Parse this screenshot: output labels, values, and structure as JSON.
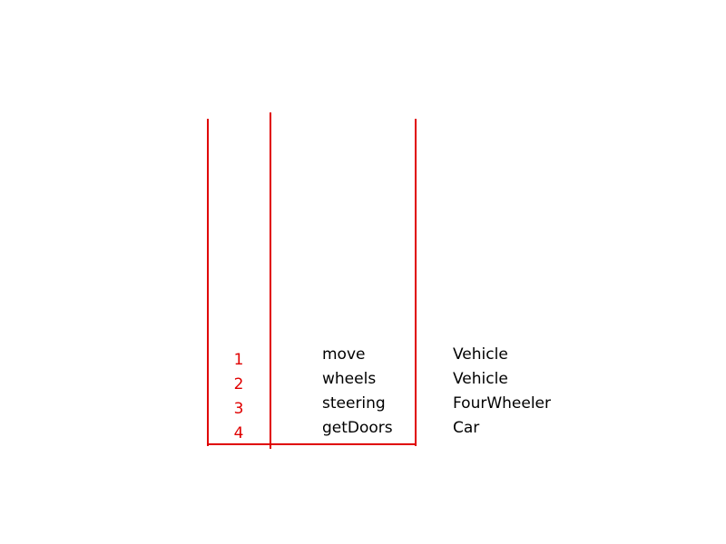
{
  "colors": {
    "accent": "#e00000",
    "text": "#000000",
    "background": "#ffffff"
  },
  "rows": [
    {
      "index": "1",
      "method": "move",
      "class": "Vehicle"
    },
    {
      "index": "2",
      "method": "wheels",
      "class": "Vehicle"
    },
    {
      "index": "3",
      "method": "steering",
      "class": "FourWheeler"
    },
    {
      "index": "4",
      "method": "getDoors",
      "class": "Car"
    }
  ]
}
